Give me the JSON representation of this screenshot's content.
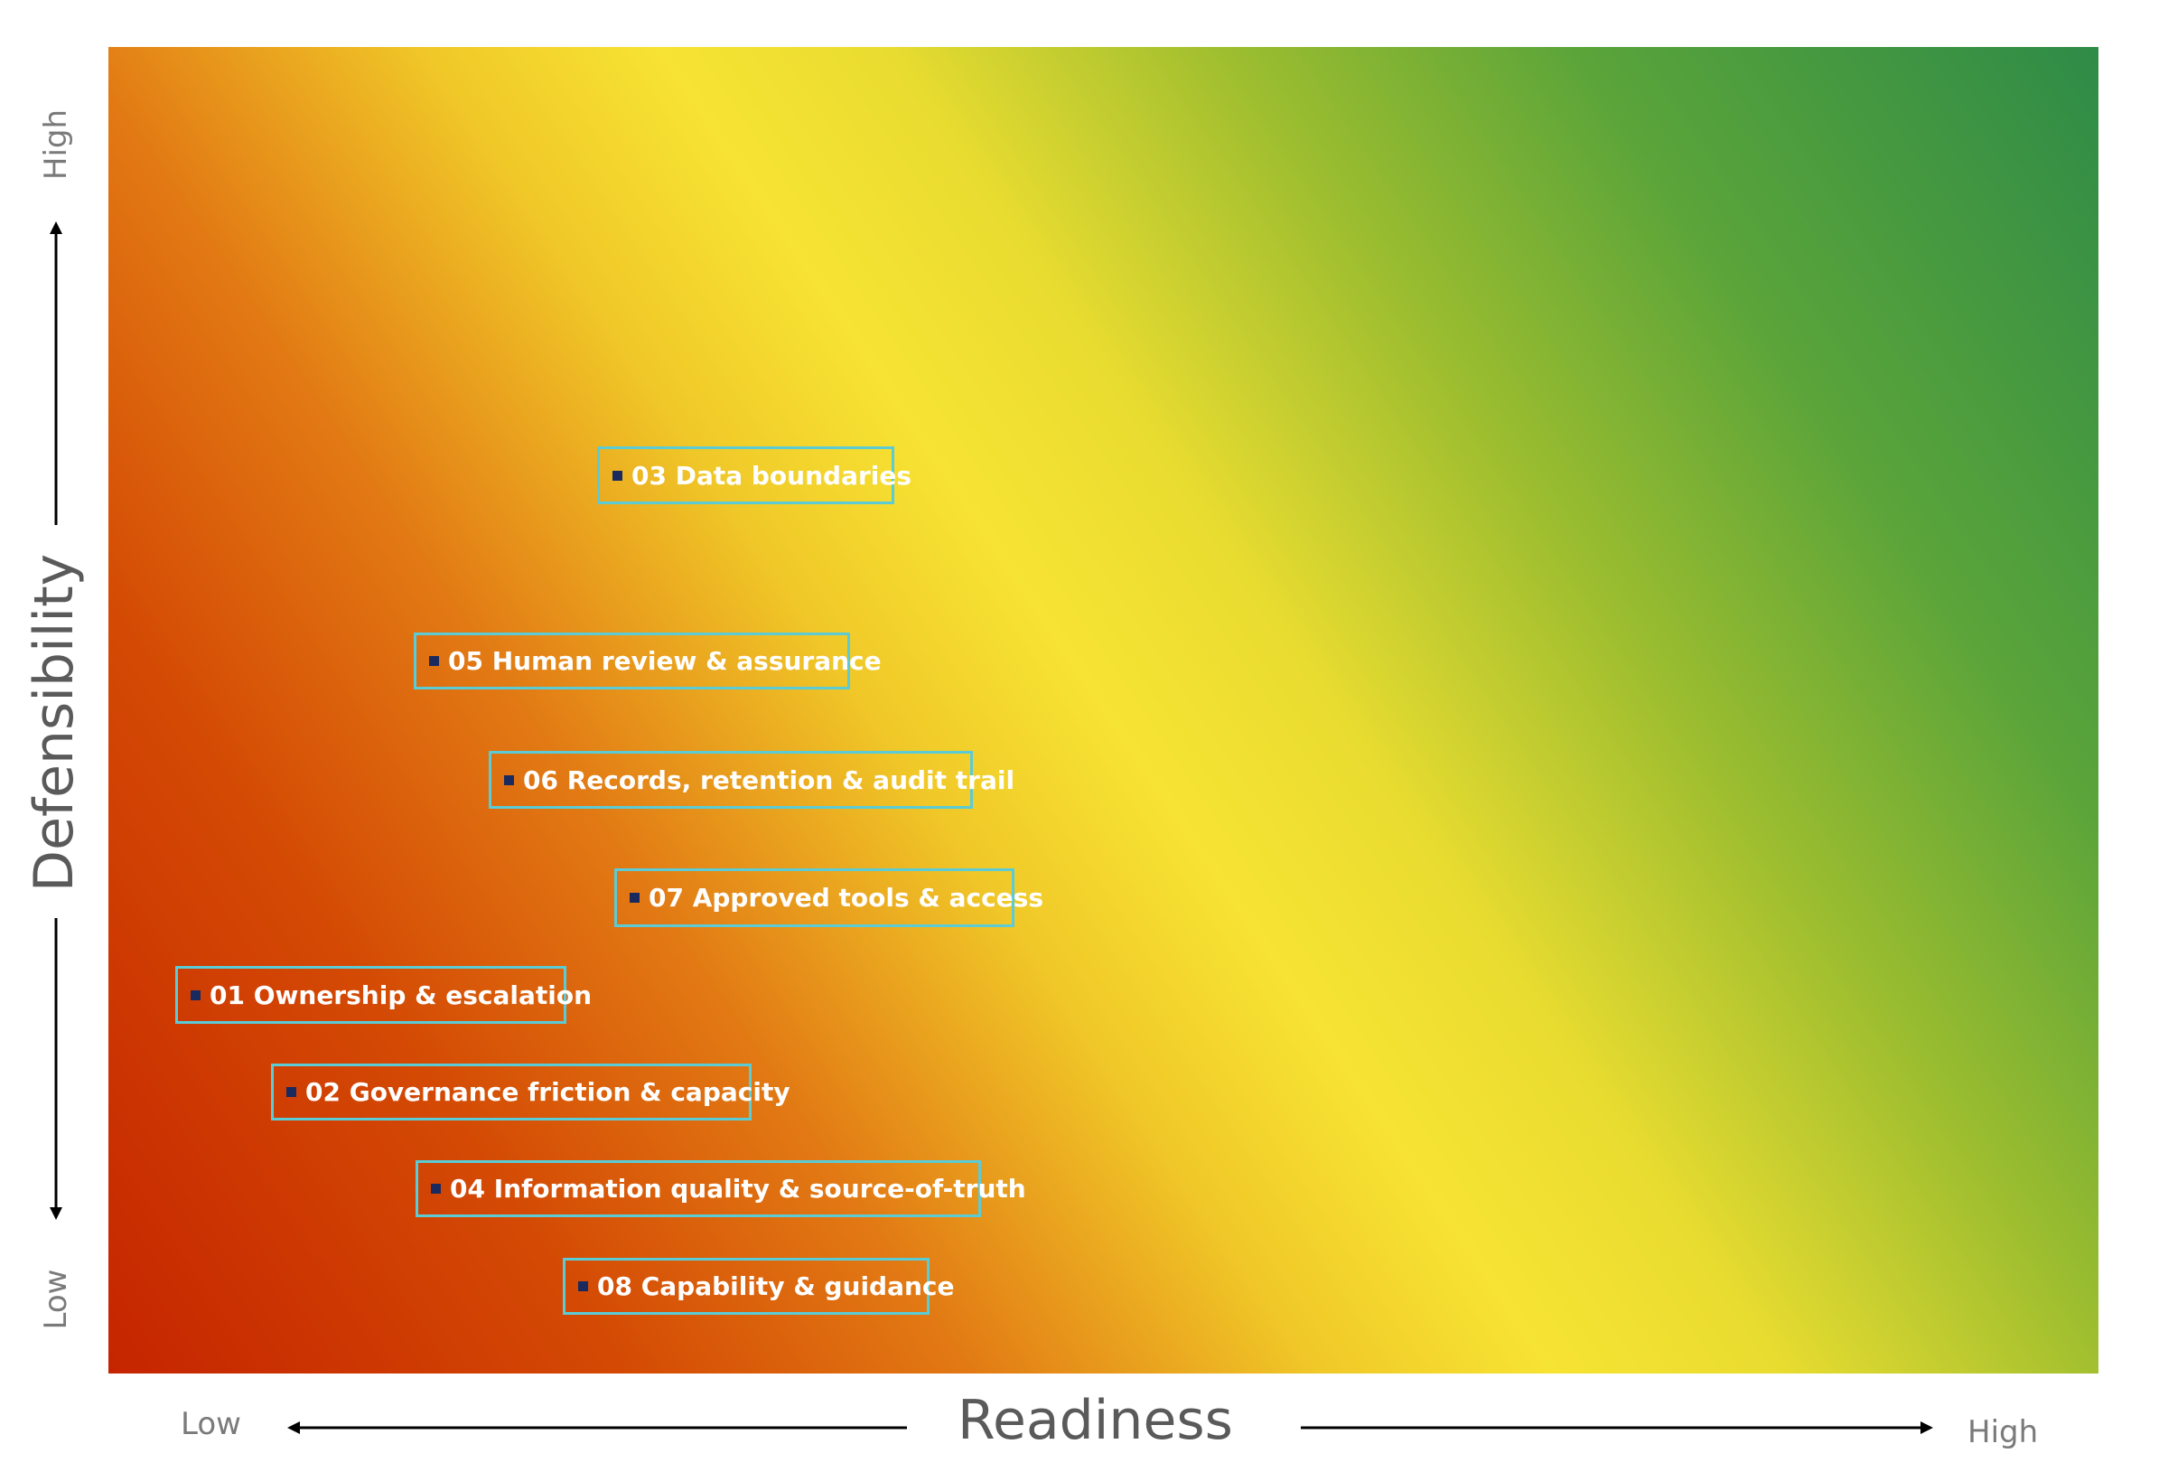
{
  "colors": {
    "low": "#c52400",
    "mid": "#f7e333",
    "high": "#2e8b47",
    "label_border": "#5bcbd6",
    "marker": "#1b2a5e"
  },
  "y_axis": {
    "title": "Defensibility",
    "high": "High",
    "low": "Low"
  },
  "x_axis": {
    "title": "Readiness",
    "low": "Low",
    "high": "High"
  },
  "items": [
    {
      "label": "03 Data boundaries"
    },
    {
      "label": "05 Human review & assurance"
    },
    {
      "label": "06 Records, retention & audit trail"
    },
    {
      "label": "07 Approved tools & access"
    },
    {
      "label": "01 Ownership & escalation"
    },
    {
      "label": "02 Governance friction & capacity"
    },
    {
      "label": "04 Information quality & source-of-truth"
    },
    {
      "label": "08 Capability & guidance"
    }
  ]
}
